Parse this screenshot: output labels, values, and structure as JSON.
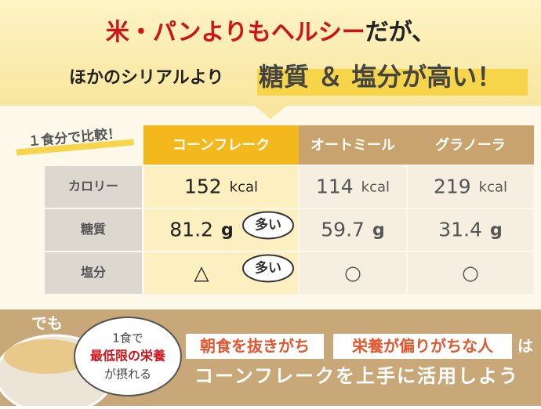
{
  "header": {
    "line1_red": "米・パンよりもヘルシー",
    "line1_black": "だが、",
    "line2_small": "ほかのシリアルより",
    "line2_big": "糖質 ＆ 塩分が高い！"
  },
  "table": {
    "caption": "１食分で比較！",
    "columns": [
      "コーンフレーク",
      "オートミール",
      "グラノーラ"
    ],
    "rows": [
      {
        "label": "カロリー",
        "cells": [
          {
            "value": "152",
            "unit": "kcal"
          },
          {
            "value": "114",
            "unit": "kcal"
          },
          {
            "value": "219",
            "unit": "kcal"
          }
        ]
      },
      {
        "label": "糖質",
        "cells": [
          {
            "value": "81.2",
            "unit": "g",
            "badge": "多い"
          },
          {
            "value": "59.7",
            "unit": "g"
          },
          {
            "value": "31.4",
            "unit": "g"
          }
        ]
      },
      {
        "label": "塩分",
        "cells": [
          {
            "value": "△",
            "badge": "多い"
          },
          {
            "value": "○"
          },
          {
            "value": "○"
          }
        ]
      }
    ]
  },
  "footer": {
    "but": "でも",
    "bubble": [
      "1食で",
      "最低限の栄養",
      "が摂れる"
    ],
    "tag1": "朝食を抜きがち",
    "tag2": "栄養が偏りがちな人",
    "particle": "は",
    "message": "コーンフレークを上手に活用しよう"
  }
}
